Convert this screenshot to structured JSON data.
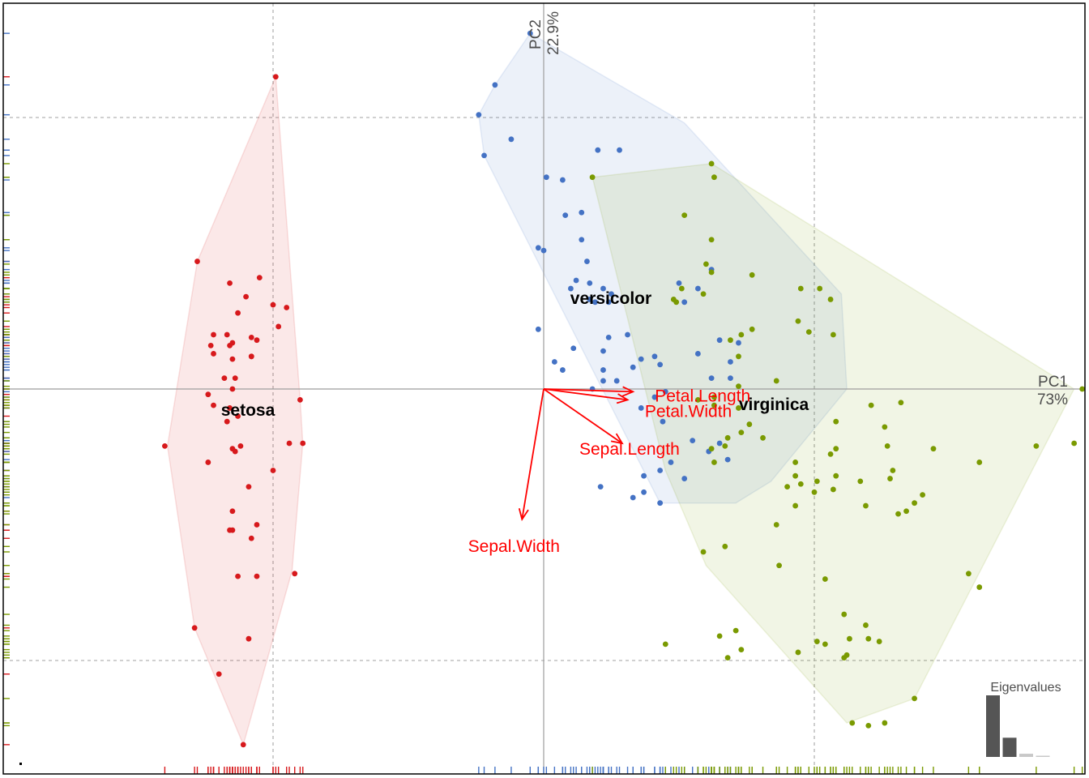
{
  "colors": {
    "setosa": "#d7191c",
    "versicolor": "#4472c4",
    "virginica": "#7a9a01",
    "arrows": "#ff0000",
    "axis": "#9e9e9e",
    "grid": "#b3b3b3",
    "frame": "#000000",
    "eig_primary": "#555555",
    "eig_minor": "#c8c8c8"
  },
  "chart_data": {
    "type": "scatter",
    "subtype": "pca-biplot",
    "title": "",
    "xlabel": "PC1",
    "xlabel_pct": "73%",
    "ylabel": "PC2",
    "ylabel_pct": "22.9%",
    "xlim": [
      -2.0,
      2.0
    ],
    "ylim": [
      -1.36,
      1.45
    ],
    "grid": "dashed",
    "grid_x": [
      -1,
      1
    ],
    "grid_y": [
      -1,
      1
    ],
    "legend": "none",
    "rug": true,
    "series": [
      {
        "name": "setosa",
        "centroid": [
          -1.98,
          -0.1
        ],
        "points": [
          [
            -0.99,
            1.15
          ],
          [
            -1.28,
            0.47
          ],
          [
            -1.16,
            0.39
          ],
          [
            -1.05,
            0.41
          ],
          [
            -1.1,
            0.34
          ],
          [
            -1.0,
            0.31
          ],
          [
            -0.95,
            0.3
          ],
          [
            -0.98,
            0.23
          ],
          [
            -1.13,
            0.28
          ],
          [
            -1.22,
            0.2
          ],
          [
            -1.17,
            0.2
          ],
          [
            -1.15,
            0.17
          ],
          [
            -1.08,
            0.19
          ],
          [
            -1.06,
            0.18
          ],
          [
            -1.16,
            0.16
          ],
          [
            -1.23,
            0.16
          ],
          [
            -1.22,
            0.13
          ],
          [
            -1.08,
            0.12
          ],
          [
            -1.15,
            0.11
          ],
          [
            -1.08,
            0.12
          ],
          [
            -1.18,
            0.04
          ],
          [
            -1.14,
            0.04
          ],
          [
            -1.15,
            0.0
          ],
          [
            -1.24,
            -0.02
          ],
          [
            -0.9,
            -0.04
          ],
          [
            -1.22,
            -0.06
          ],
          [
            -1.16,
            -0.07
          ],
          [
            -1.13,
            -0.1
          ],
          [
            -1.17,
            -0.12
          ],
          [
            -1.4,
            -0.21
          ],
          [
            -0.94,
            -0.2
          ],
          [
            -0.89,
            -0.2
          ],
          [
            -1.12,
            -0.21
          ],
          [
            -1.15,
            -0.22
          ],
          [
            -1.14,
            -0.23
          ],
          [
            -1.24,
            -0.27
          ],
          [
            -1.0,
            -0.3
          ],
          [
            -1.09,
            -0.36
          ],
          [
            -1.15,
            -0.45
          ],
          [
            -1.06,
            -0.5
          ],
          [
            -1.15,
            -0.52
          ],
          [
            -1.16,
            -0.52
          ],
          [
            -1.08,
            -0.55
          ],
          [
            -0.92,
            -0.68
          ],
          [
            -1.06,
            -0.69
          ],
          [
            -1.13,
            -0.69
          ],
          [
            -1.29,
            -0.88
          ],
          [
            -1.09,
            -0.92
          ],
          [
            -1.2,
            -1.05
          ],
          [
            -1.11,
            -1.31
          ]
        ]
      },
      {
        "name": "versicolor",
        "centroid": [
          0.63,
          0.34
        ],
        "points": [
          [
            -0.05,
            1.31
          ],
          [
            -0.18,
            1.12
          ],
          [
            -0.24,
            1.01
          ],
          [
            -0.22,
            0.86
          ],
          [
            -0.12,
            0.92
          ],
          [
            0.2,
            0.88
          ],
          [
            0.28,
            0.88
          ],
          [
            0.01,
            0.78
          ],
          [
            0.07,
            0.77
          ],
          [
            0.14,
            0.65
          ],
          [
            0.08,
            0.64
          ],
          [
            0.14,
            0.55
          ],
          [
            -0.02,
            0.52
          ],
          [
            0.0,
            0.51
          ],
          [
            0.16,
            0.47
          ],
          [
            0.12,
            0.4
          ],
          [
            0.17,
            0.39
          ],
          [
            0.22,
            0.37
          ],
          [
            0.1,
            0.37
          ],
          [
            0.17,
            0.33
          ],
          [
            0.19,
            0.32
          ],
          [
            0.25,
            0.35
          ],
          [
            0.5,
            0.39
          ],
          [
            0.62,
            0.44
          ],
          [
            0.57,
            0.37
          ],
          [
            0.24,
            0.32
          ],
          [
            0.52,
            0.32
          ],
          [
            -0.02,
            0.22
          ],
          [
            0.24,
            0.19
          ],
          [
            0.31,
            0.2
          ],
          [
            0.72,
            0.17
          ],
          [
            0.65,
            0.18
          ],
          [
            0.57,
            0.13
          ],
          [
            0.69,
            0.1
          ],
          [
            0.11,
            0.15
          ],
          [
            0.22,
            0.14
          ],
          [
            0.41,
            0.12
          ],
          [
            0.36,
            0.11
          ],
          [
            0.04,
            0.1
          ],
          [
            0.07,
            0.07
          ],
          [
            0.22,
            0.07
          ],
          [
            0.33,
            0.08
          ],
          [
            0.43,
            0.09
          ],
          [
            0.62,
            0.04
          ],
          [
            0.69,
            0.04
          ],
          [
            0.22,
            0.03
          ],
          [
            0.27,
            0.03
          ],
          [
            0.45,
            -0.01
          ],
          [
            0.18,
            -0.0
          ],
          [
            0.41,
            -0.03
          ],
          [
            0.36,
            -0.07
          ],
          [
            0.44,
            -0.12
          ],
          [
            0.55,
            -0.19
          ],
          [
            0.65,
            -0.2
          ],
          [
            0.61,
            -0.23
          ],
          [
            0.68,
            -0.26
          ],
          [
            0.47,
            -0.27
          ],
          [
            0.43,
            -0.3
          ],
          [
            0.37,
            -0.32
          ],
          [
            0.52,
            -0.33
          ],
          [
            0.21,
            -0.36
          ],
          [
            0.37,
            -0.38
          ],
          [
            0.33,
            -0.4
          ],
          [
            0.43,
            -0.42
          ]
        ]
      },
      {
        "name": "virginica",
        "centroid": [
          1.34,
          -0.05
        ],
        "points": [
          [
            0.18,
            0.78
          ],
          [
            0.62,
            0.83
          ],
          [
            0.63,
            0.78
          ],
          [
            0.52,
            0.64
          ],
          [
            0.62,
            0.55
          ],
          [
            0.6,
            0.46
          ],
          [
            0.62,
            0.43
          ],
          [
            0.77,
            0.42
          ],
          [
            0.51,
            0.37
          ],
          [
            0.59,
            0.35
          ],
          [
            0.48,
            0.33
          ],
          [
            0.49,
            0.32
          ],
          [
            1.02,
            0.37
          ],
          [
            0.95,
            0.37
          ],
          [
            1.06,
            0.33
          ],
          [
            0.94,
            0.25
          ],
          [
            0.98,
            0.21
          ],
          [
            1.07,
            0.2
          ],
          [
            0.77,
            0.22
          ],
          [
            0.73,
            0.2
          ],
          [
            0.69,
            0.18
          ],
          [
            0.72,
            0.12
          ],
          [
            0.86,
            0.03
          ],
          [
            0.72,
            0.01
          ],
          [
            0.63,
            -0.03
          ],
          [
            0.57,
            -0.04
          ],
          [
            0.63,
            -0.06
          ],
          [
            0.72,
            -0.07
          ],
          [
            1.21,
            -0.06
          ],
          [
            1.32,
            -0.05
          ],
          [
            0.76,
            -0.13
          ],
          [
            0.73,
            -0.16
          ],
          [
            1.08,
            -0.12
          ],
          [
            1.26,
            -0.14
          ],
          [
            0.81,
            -0.18
          ],
          [
            0.68,
            -0.18
          ],
          [
            0.67,
            -0.21
          ],
          [
            0.62,
            -0.22
          ],
          [
            0.63,
            -0.27
          ],
          [
            0.93,
            -0.27
          ],
          [
            1.08,
            -0.22
          ],
          [
            1.06,
            -0.24
          ],
          [
            1.27,
            -0.21
          ],
          [
            1.44,
            -0.22
          ],
          [
            1.82,
            -0.21
          ],
          [
            1.61,
            -0.27
          ],
          [
            1.96,
            -0.2
          ],
          [
            1.29,
            -0.3
          ],
          [
            1.28,
            -0.33
          ],
          [
            0.93,
            -0.32
          ],
          [
            0.95,
            -0.35
          ],
          [
            1.08,
            -0.32
          ],
          [
            0.9,
            -0.36
          ],
          [
            1.01,
            -0.34
          ],
          [
            1.17,
            -0.34
          ],
          [
            0.93,
            -0.43
          ],
          [
            1.0,
            -0.38
          ],
          [
            1.07,
            -0.37
          ],
          [
            1.4,
            -0.39
          ],
          [
            1.37,
            -0.42
          ],
          [
            1.34,
            -0.45
          ],
          [
            1.19,
            -0.43
          ],
          [
            1.31,
            -0.46
          ],
          [
            0.86,
            -0.5
          ],
          [
            0.67,
            -0.58
          ],
          [
            0.59,
            -0.6
          ],
          [
            0.87,
            -0.65
          ],
          [
            1.04,
            -0.7
          ],
          [
            1.57,
            -0.68
          ],
          [
            1.61,
            -0.73
          ],
          [
            0.71,
            -0.89
          ],
          [
            1.04,
            -0.94
          ],
          [
            1.13,
            -0.92
          ],
          [
            1.11,
            -0.99
          ],
          [
            0.73,
            -0.96
          ],
          [
            0.68,
            -0.99
          ],
          [
            0.45,
            -0.94
          ],
          [
            1.2,
            -0.92
          ],
          [
            1.24,
            -0.93
          ],
          [
            1.12,
            -0.98
          ],
          [
            1.99,
            0.0
          ],
          [
            1.11,
            -0.83
          ],
          [
            1.19,
            -0.87
          ],
          [
            0.65,
            -0.91
          ],
          [
            1.37,
            -1.14
          ],
          [
            1.14,
            -1.23
          ],
          [
            1.2,
            -1.24
          ],
          [
            1.01,
            -0.93
          ],
          [
            0.94,
            -0.97
          ],
          [
            1.26,
            -1.23
          ]
        ]
      }
    ],
    "hulls": {
      "setosa": [
        [
          -0.99,
          1.15
        ],
        [
          -1.28,
          0.47
        ],
        [
          -1.39,
          -0.21
        ],
        [
          -1.29,
          -0.88
        ],
        [
          -1.11,
          -1.31
        ],
        [
          -0.93,
          -0.67
        ],
        [
          -0.89,
          -0.2
        ],
        [
          -0.9,
          -0.04
        ]
      ],
      "versicolor": [
        [
          -0.05,
          1.31
        ],
        [
          -0.18,
          1.12
        ],
        [
          -0.24,
          1.01
        ],
        [
          -0.22,
          0.86
        ],
        [
          0.43,
          -0.42
        ],
        [
          0.71,
          -0.42
        ],
        [
          0.84,
          -0.34
        ],
        [
          1.12,
          0.0
        ],
        [
          1.1,
          0.35
        ],
        [
          0.52,
          0.98
        ]
      ],
      "virginica": [
        [
          0.18,
          0.78
        ],
        [
          0.62,
          0.83
        ],
        [
          1.96,
          0.0
        ],
        [
          1.37,
          -1.14
        ],
        [
          1.12,
          -1.23
        ],
        [
          0.6,
          -0.65
        ],
        [
          0.45,
          -0.3
        ]
      ]
    },
    "loadings": [
      {
        "name": "Petal.Length",
        "x": 0.33,
        "y": -0.01
      },
      {
        "name": "Petal.Width",
        "x": 0.31,
        "y": -0.04
      },
      {
        "name": "Sepal.Length",
        "x": 0.29,
        "y": -0.2
      },
      {
        "name": "Sepal.Width",
        "x": -0.08,
        "y": -0.48
      }
    ],
    "eigenvalues": [
      2.92,
      0.91,
      0.15,
      0.02
    ]
  },
  "labels": {
    "pc1": "PC1",
    "pc1_pct": "73%",
    "pc2": "PC2",
    "pc2_pct": "22.9%",
    "eigen_title": "Eigenvalues",
    "groups": {
      "setosa": "setosa",
      "versicolor": "versicolor",
      "virginica": "virginica"
    }
  }
}
